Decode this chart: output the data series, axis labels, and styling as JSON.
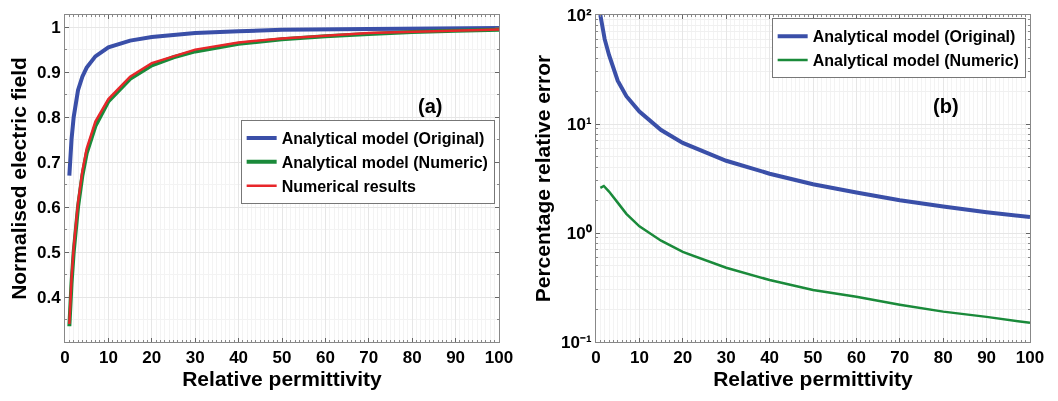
{
  "chart_data": [
    {
      "type": "line",
      "xlabel": "Relative permittivity",
      "ylabel": "Normalised electric field",
      "annotations": [
        "(a)"
      ],
      "xlim": [
        0,
        100
      ],
      "xticks": [
        0,
        10,
        20,
        30,
        40,
        50,
        60,
        70,
        80,
        90,
        100
      ],
      "ylim": [
        0.3,
        1.027
      ],
      "yticks": [
        0.4,
        0.5,
        0.6,
        0.7,
        0.8,
        0.9,
        1
      ],
      "grid": true,
      "legend": "right",
      "line_style": "solid",
      "marker": "none",
      "series": [
        {
          "name": "Analytical model (Original)",
          "color": "#3a4fa8",
          "x": [
            1,
            1.5,
            2,
            3,
            4,
            5,
            7,
            10,
            15,
            20,
            30,
            40,
            50,
            70,
            100
          ],
          "values": [
            0.67,
            0.75,
            0.8,
            0.86,
            0.89,
            0.91,
            0.935,
            0.955,
            0.97,
            0.978,
            0.987,
            0.991,
            0.994,
            0.996,
            0.998
          ]
        },
        {
          "name": "Analytical model (Numeric)",
          "color": "#1a8a3a",
          "x": [
            1,
            1.5,
            2,
            3,
            4,
            5,
            7,
            10,
            15,
            20,
            25,
            30,
            40,
            50,
            60,
            70,
            80,
            90,
            100
          ],
          "values": [
            0.335,
            0.43,
            0.5,
            0.6,
            0.67,
            0.72,
            0.78,
            0.835,
            0.885,
            0.915,
            0.933,
            0.946,
            0.963,
            0.973,
            0.98,
            0.985,
            0.989,
            0.992,
            0.994
          ]
        },
        {
          "name": "Numerical results",
          "color": "#e8262a",
          "x": [
            1,
            1.5,
            2,
            3,
            4,
            5,
            7,
            10,
            15,
            20,
            30,
            40,
            50,
            70,
            100
          ],
          "values": [
            0.34,
            0.44,
            0.51,
            0.61,
            0.68,
            0.73,
            0.79,
            0.84,
            0.89,
            0.92,
            0.95,
            0.966,
            0.975,
            0.987,
            0.995
          ]
        }
      ]
    },
    {
      "type": "line",
      "xlabel": "Relative permittivity",
      "ylabel": "Percentage relative error",
      "annotations": [
        "(b)"
      ],
      "xlim": [
        0,
        100
      ],
      "xticks": [
        0,
        10,
        20,
        30,
        40,
        50,
        60,
        70,
        80,
        90,
        100
      ],
      "ylim": [
        0.1,
        100
      ],
      "log": "y",
      "yticks": [
        {
          "value": 0.1,
          "label": "10⁻¹"
        },
        {
          "value": 1,
          "label": "10⁰"
        },
        {
          "value": 10,
          "label": "10¹"
        },
        {
          "value": 100,
          "label": "10²"
        }
      ],
      "grid": true,
      "legend": "top right",
      "line_style": "solid",
      "marker": "none",
      "series": [
        {
          "name": "Analytical model (Original)",
          "color": "#3a4fa8",
          "x": [
            1,
            2,
            3,
            5,
            7,
            10,
            15,
            20,
            30,
            40,
            50,
            60,
            70,
            80,
            90,
            100
          ],
          "values": [
            100,
            60,
            43,
            25,
            18,
            13,
            8.8,
            6.7,
            4.6,
            3.5,
            2.8,
            2.35,
            2.0,
            1.75,
            1.55,
            1.4
          ]
        },
        {
          "name": "Analytical model (Numeric)",
          "color": "#1a8a3a",
          "x": [
            1,
            1.8,
            3,
            5,
            7,
            10,
            15,
            20,
            30,
            40,
            50,
            60,
            70,
            80,
            90,
            100
          ],
          "values": [
            2.6,
            2.7,
            2.4,
            1.9,
            1.5,
            1.15,
            0.85,
            0.67,
            0.48,
            0.37,
            0.3,
            0.26,
            0.22,
            0.19,
            0.17,
            0.15
          ]
        }
      ]
    }
  ]
}
